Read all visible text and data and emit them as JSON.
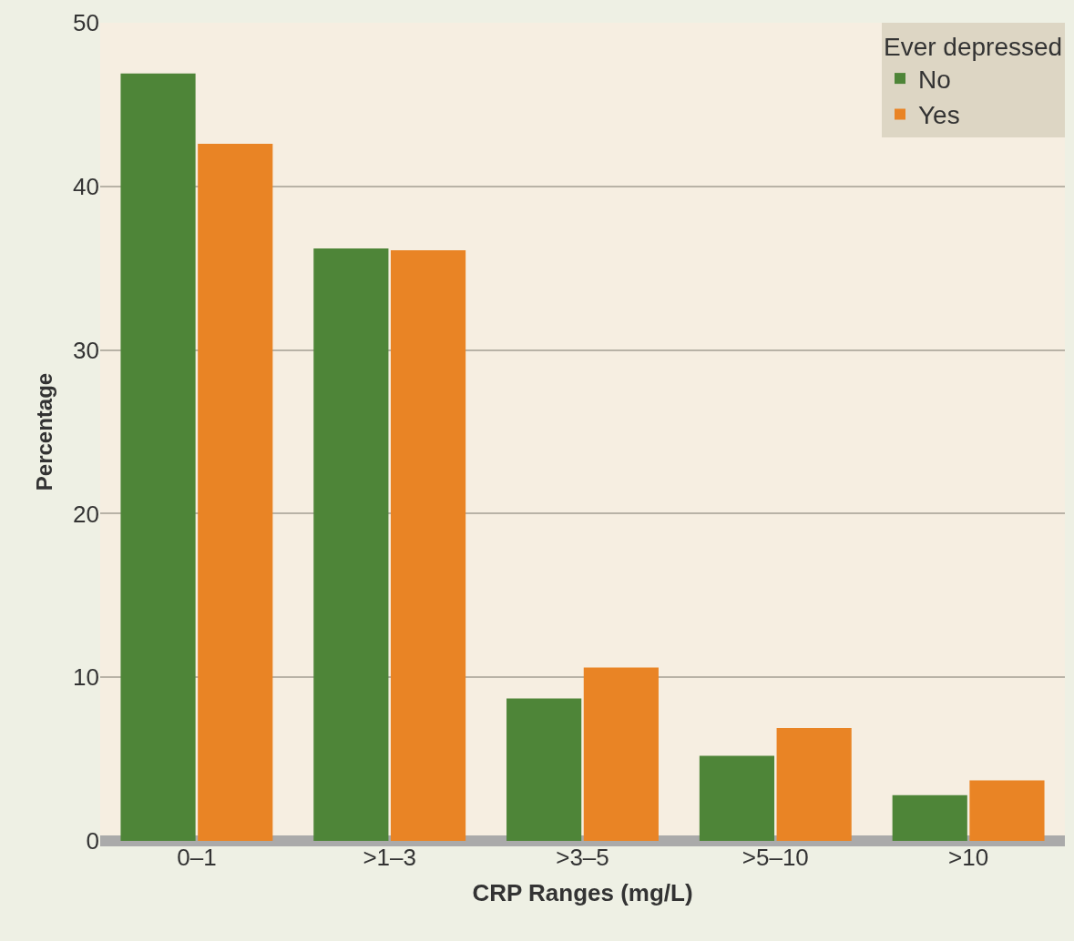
{
  "chart_data": {
    "type": "bar",
    "xlabel": "CRP Ranges (mg/L)",
    "ylabel": "Percentage",
    "legend_title": "Ever depressed",
    "categories": [
      "0–1",
      ">1–3",
      ">3–5",
      ">5–10",
      ">10"
    ],
    "series": [
      {
        "name": "No",
        "color": "#4e8538",
        "values": [
          46.9,
          36.2,
          8.7,
          5.2,
          2.8
        ]
      },
      {
        "name": "Yes",
        "color": "#e98425",
        "values": [
          42.6,
          36.1,
          10.6,
          6.9,
          3.7
        ]
      }
    ],
    "ylim": [
      0,
      50
    ],
    "yticks": [
      0,
      10,
      20,
      30,
      40,
      50
    ],
    "grid": "y",
    "legend": "top right"
  }
}
